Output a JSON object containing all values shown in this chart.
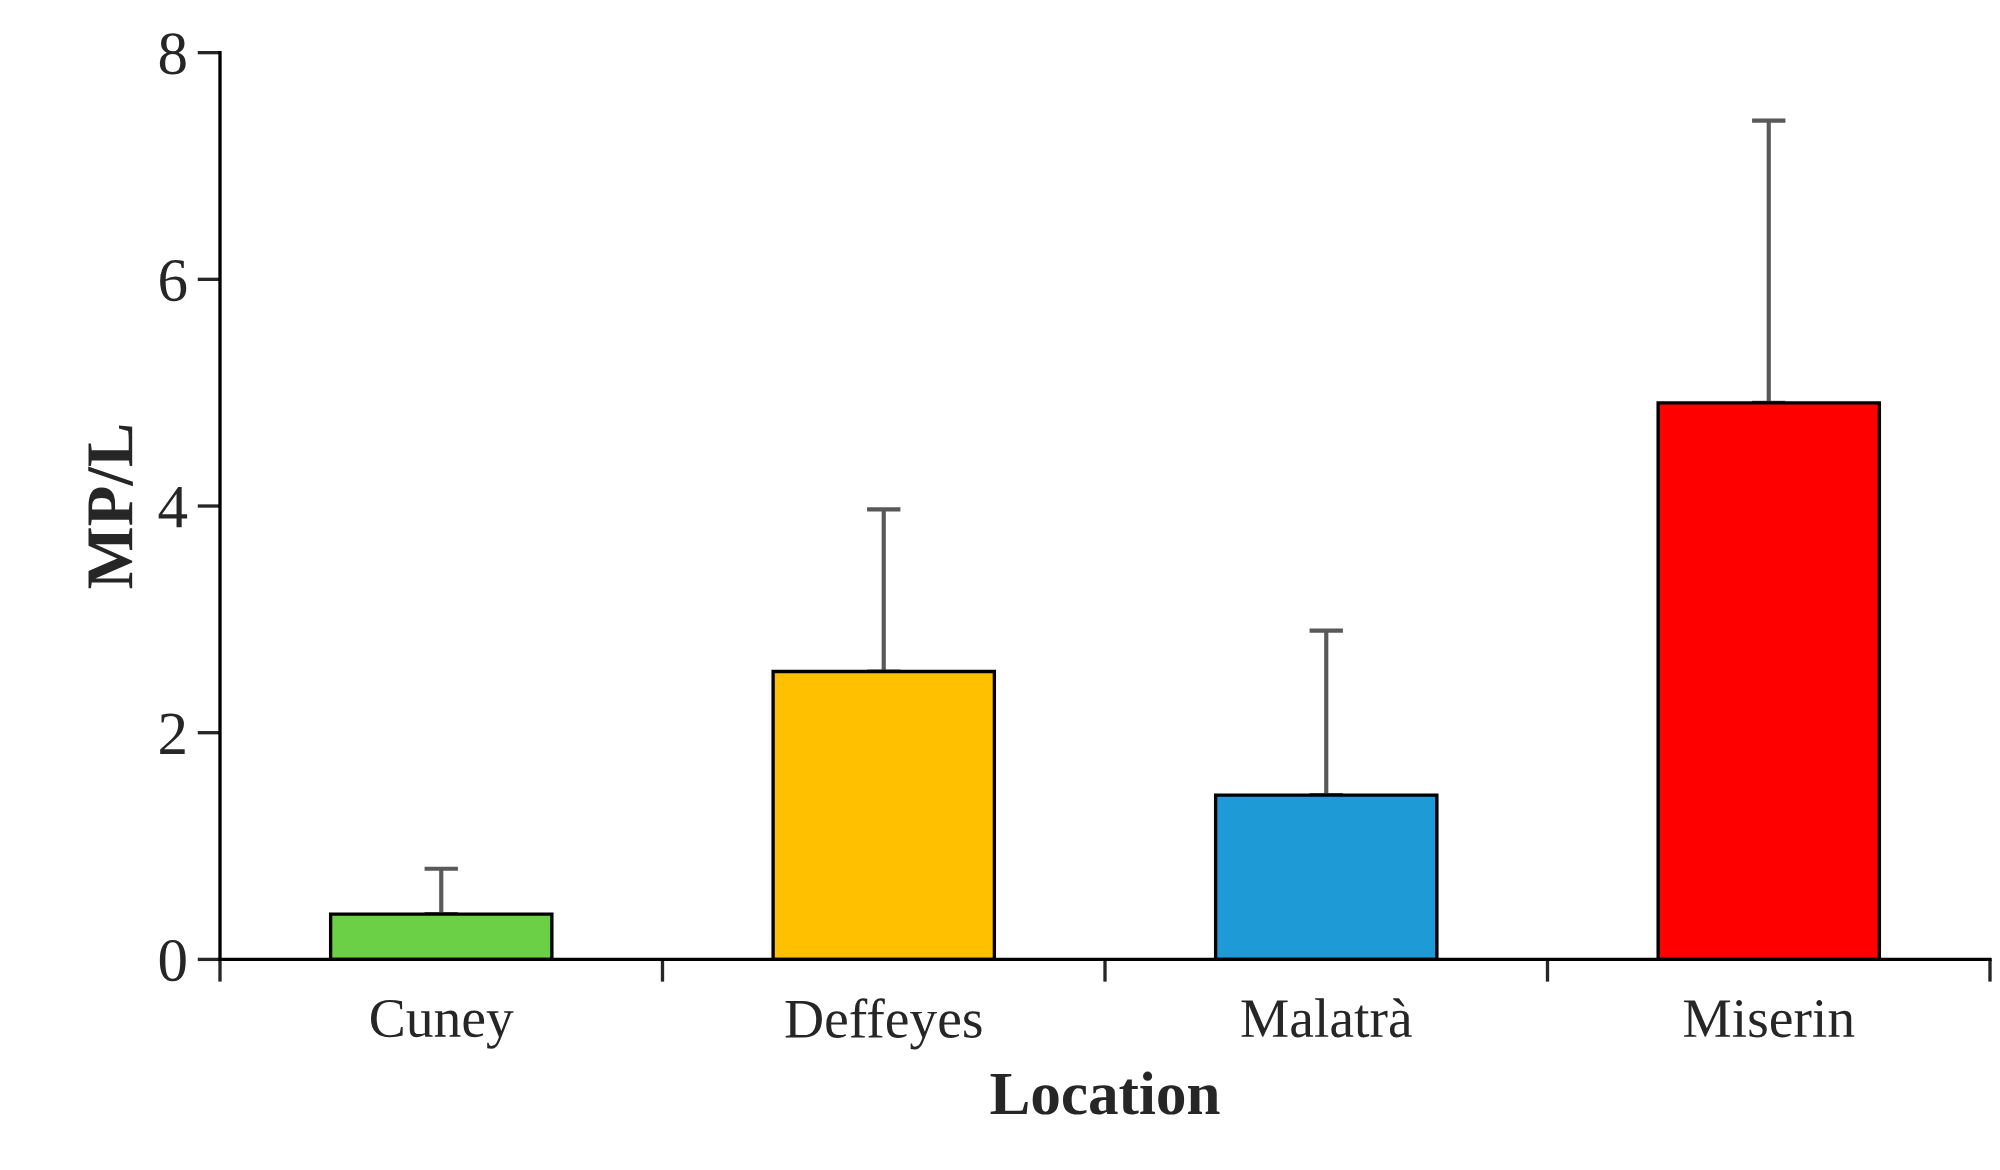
{
  "chart_data": {
    "type": "bar",
    "xlabel": "Location",
    "ylabel": "MP/L",
    "categories": [
      "Cuney",
      "Deffeyes",
      "Malatrà",
      "Miserin"
    ],
    "values": [
      0.4,
      2.54,
      1.45,
      4.91
    ],
    "colors": [
      "#6cd046",
      "#ffc000",
      "#1e9bd7",
      "#ff0000"
    ],
    "errors": [
      [
        0.4,
        0.8
      ],
      [
        2.54,
        3.97
      ],
      [
        1.45,
        2.9
      ],
      [
        4.91,
        7.4
      ]
    ],
    "ylim": [
      0,
      8
    ],
    "yticks": [
      0,
      2,
      4,
      6,
      8
    ],
    "grid": false,
    "legend": false
  }
}
